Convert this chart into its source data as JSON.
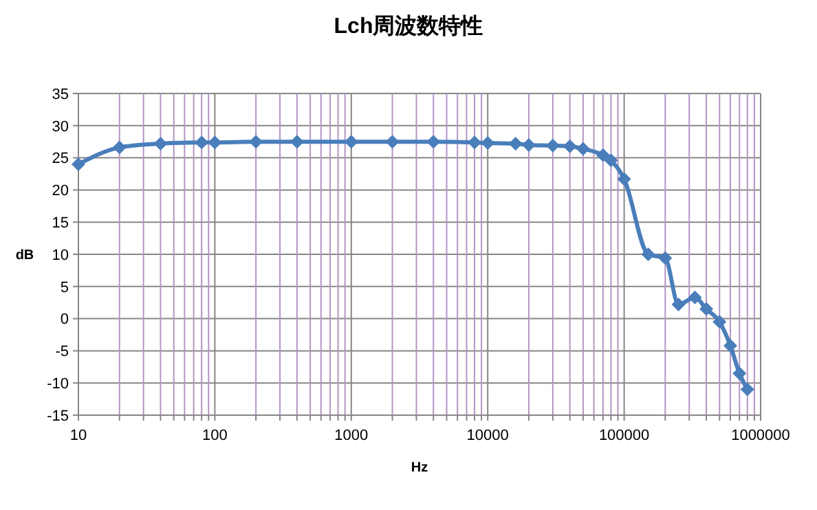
{
  "chart_data": {
    "type": "line",
    "title": "Lch周波数特性",
    "xlabel": "Hz",
    "ylabel": "dB",
    "log": "x",
    "grid": true,
    "marker": "diamond",
    "line_style": "solid",
    "xlim": [
      10,
      1000000
    ],
    "xticks": [
      10,
      {
        "value": 20,
        "label": null
      },
      {
        "value": 30,
        "label": null
      },
      {
        "value": 40,
        "label": null
      },
      {
        "value": 50,
        "label": null
      },
      {
        "value": 60,
        "label": null
      },
      {
        "value": 70,
        "label": null
      },
      {
        "value": 80,
        "label": null
      },
      {
        "value": 90,
        "label": null
      },
      100,
      {
        "value": 200,
        "label": null
      },
      {
        "value": 300,
        "label": null
      },
      {
        "value": 400,
        "label": null
      },
      {
        "value": 500,
        "label": null
      },
      {
        "value": 600,
        "label": null
      },
      {
        "value": 700,
        "label": null
      },
      {
        "value": 800,
        "label": null
      },
      {
        "value": 900,
        "label": null
      },
      1000,
      {
        "value": 2000,
        "label": null
      },
      {
        "value": 3000,
        "label": null
      },
      {
        "value": 4000,
        "label": null
      },
      {
        "value": 5000,
        "label": null
      },
      {
        "value": 6000,
        "label": null
      },
      {
        "value": 7000,
        "label": null
      },
      {
        "value": 8000,
        "label": null
      },
      {
        "value": 9000,
        "label": null
      },
      10000,
      {
        "value": 20000,
        "label": null
      },
      {
        "value": 30000,
        "label": null
      },
      {
        "value": 40000,
        "label": null
      },
      {
        "value": 50000,
        "label": null
      },
      {
        "value": 60000,
        "label": null
      },
      {
        "value": 70000,
        "label": null
      },
      {
        "value": 80000,
        "label": null
      },
      {
        "value": 90000,
        "label": null
      },
      100000,
      {
        "value": 200000,
        "label": null
      },
      {
        "value": 300000,
        "label": null
      },
      {
        "value": 400000,
        "label": null
      },
      {
        "value": 500000,
        "label": null
      },
      {
        "value": 600000,
        "label": null
      },
      {
        "value": 700000,
        "label": null
      },
      {
        "value": 800000,
        "label": null
      },
      {
        "value": 900000,
        "label": null
      },
      1000000
    ],
    "ylim": [
      -15,
      35
    ],
    "yticks": [
      -15,
      -10,
      -5,
      0,
      5,
      10,
      15,
      20,
      25,
      30,
      35
    ],
    "x": [
      10,
      20,
      40,
      80,
      100,
      200,
      400,
      1000,
      2000,
      4000,
      8000,
      10000,
      16000,
      20000,
      30000,
      40000,
      50000,
      70000,
      80000,
      100000,
      150000,
      200000,
      250000,
      330000,
      400000,
      500000,
      600000,
      700000,
      800000
    ],
    "series": [
      {
        "color": "#4a7ebb",
        "values": [
          24,
          26.6,
          27.2,
          27.4,
          27.4,
          27.5,
          27.5,
          27.5,
          27.5,
          27.5,
          27.4,
          27.3,
          27.2,
          27,
          26.9,
          26.8,
          26.4,
          25.4,
          24.6,
          21.7,
          10,
          9.4,
          2.2,
          3.3,
          1.5,
          -0.5,
          -4.2,
          -8.5,
          -11
        ]
      }
    ]
  }
}
